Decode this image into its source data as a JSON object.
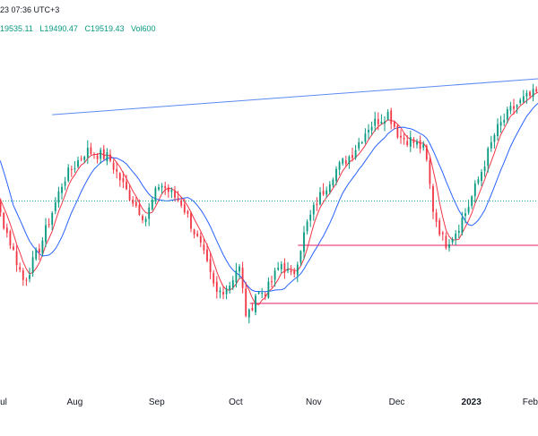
{
  "header": {
    "datetime": "23 07:36 UTC+3",
    "ohlc": {
      "high": "19535.11",
      "low": "L19490.47",
      "close": "C19519.43",
      "volume": "Vol600"
    }
  },
  "chart_data": {
    "type": "candlestick",
    "x_ticks": [
      {
        "label": "Jul",
        "pos": 0.05
      },
      {
        "label": "Aug",
        "pos": 0.18
      },
      {
        "label": "Sep",
        "pos": 0.325
      },
      {
        "label": "Oct",
        "pos": 0.465
      },
      {
        "label": "Nov",
        "pos": 0.603
      },
      {
        "label": "Dec",
        "pos": 0.75
      },
      {
        "label": "2023",
        "pos": 0.882,
        "bold": true
      },
      {
        "label": "Feb",
        "pos": 1.0
      }
    ],
    "ylim": [
      18300,
      20250
    ],
    "close_path": [
      [
        0,
        19500
      ],
      [
        0.04,
        19330
      ],
      [
        0.09,
        18850
      ],
      [
        0.12,
        19070
      ],
      [
        0.16,
        19450
      ],
      [
        0.2,
        19620
      ],
      [
        0.24,
        19580
      ],
      [
        0.27,
        19390
      ],
      [
        0.305,
        19220
      ],
      [
        0.33,
        19430
      ],
      [
        0.37,
        19310
      ],
      [
        0.405,
        19040
      ],
      [
        0.43,
        18780
      ],
      [
        0.455,
        18840
      ],
      [
        0.47,
        18960
      ],
      [
        0.485,
        18620
      ],
      [
        0.5,
        18780
      ],
      [
        0.52,
        18800
      ],
      [
        0.545,
        18960
      ],
      [
        0.565,
        18870
      ],
      [
        0.59,
        19180
      ],
      [
        0.61,
        19330
      ],
      [
        0.64,
        19500
      ],
      [
        0.67,
        19600
      ],
      [
        0.7,
        19760
      ],
      [
        0.735,
        19840
      ],
      [
        0.755,
        19700
      ],
      [
        0.775,
        19680
      ],
      [
        0.8,
        19620
      ],
      [
        0.815,
        19260
      ],
      [
        0.835,
        19070
      ],
      [
        0.855,
        19150
      ],
      [
        0.875,
        19280
      ],
      [
        0.9,
        19500
      ],
      [
        0.925,
        19730
      ],
      [
        0.95,
        19850
      ],
      [
        0.975,
        19920
      ],
      [
        1.0,
        19960
      ],
      [
        1.03,
        19930
      ],
      [
        1.06,
        19950
      ]
    ],
    "trendline": {
      "from": [
        0.14,
        19830
      ],
      "to": [
        1.06,
        20055
      ]
    },
    "horizontal_levels": [
      {
        "y": 19065,
        "from": 0.575,
        "color": "#e91e63"
      },
      {
        "y": 18725,
        "from": 0.49,
        "color": "#e91e63"
      }
    ],
    "dotted_level": {
      "y": 19325,
      "color": "#22ab94"
    },
    "series": [
      {
        "type": "sma-fast",
        "color": "#f23645",
        "smooth": 5
      },
      {
        "type": "sma-slow",
        "color": "#2962ff",
        "smooth": 13
      }
    ],
    "colors": {
      "up": "#089981",
      "down": "#f23645",
      "trend": "#5b8af5"
    }
  }
}
